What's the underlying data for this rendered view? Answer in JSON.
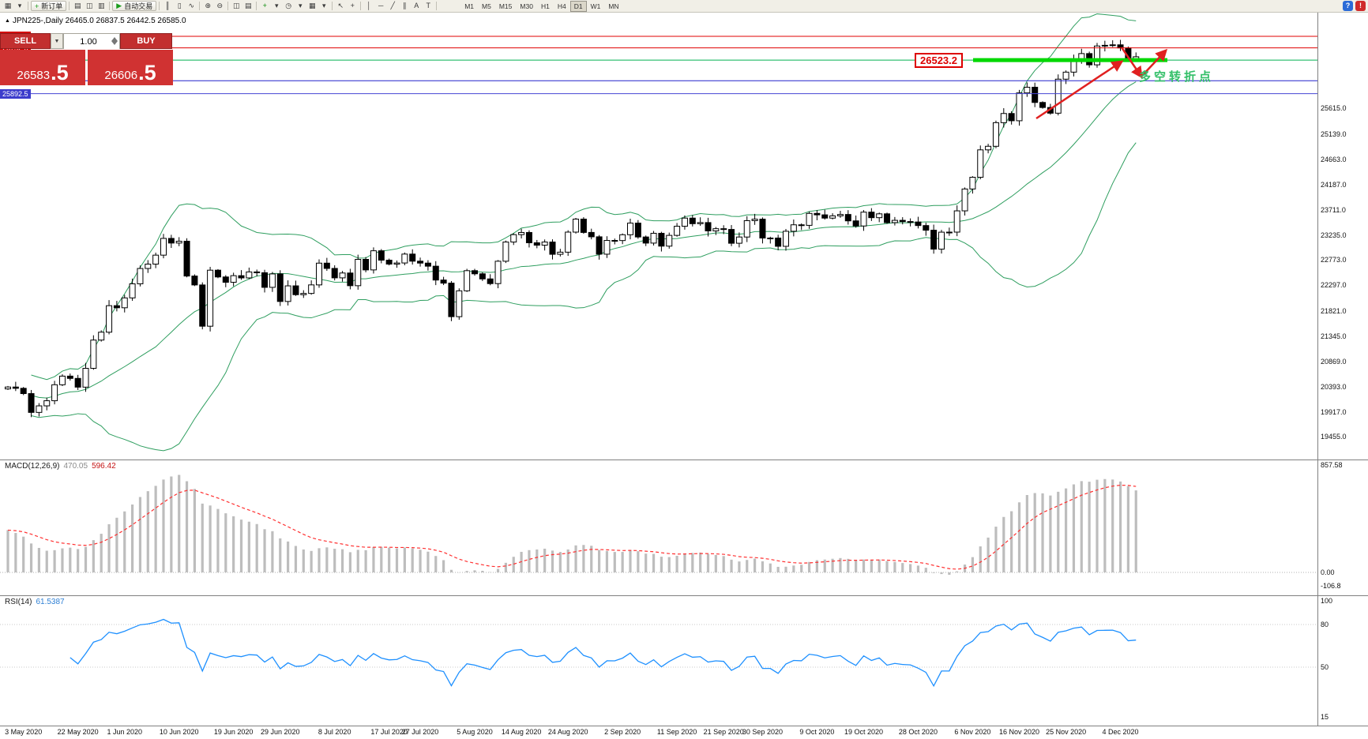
{
  "header": {
    "marker": "▲",
    "symbol_line": "JPN225-,Daily 26465.0 26837.5 26442.5 26585.0"
  },
  "toolbar": {
    "items": [
      {
        "name": "new-chart",
        "glyph": "▦"
      },
      {
        "name": "chart-profiles",
        "glyph": "▾"
      },
      {
        "type": "sep"
      },
      {
        "name": "new-order",
        "type": "button",
        "label": "新订单",
        "glyph": "+",
        "glyph_color": "#1a9c1a"
      },
      {
        "type": "sep"
      },
      {
        "name": "market-watch",
        "glyph": "▤"
      },
      {
        "name": "data-window",
        "glyph": "◫"
      },
      {
        "name": "terminal",
        "glyph": "▥"
      },
      {
        "type": "sep"
      },
      {
        "name": "autotrade",
        "type": "button",
        "label": "自动交易",
        "glyph": "▶",
        "glyph_color": "#1a9c1a"
      },
      {
        "type": "sep"
      },
      {
        "name": "bar-chart",
        "glyph": "║"
      },
      {
        "name": "candlestick-chart",
        "glyph": "▯"
      },
      {
        "name": "line-chart",
        "glyph": "∿"
      },
      {
        "type": "sep"
      },
      {
        "name": "zoom-in",
        "glyph": "⊕"
      },
      {
        "name": "zoom-out",
        "glyph": "⊖"
      },
      {
        "type": "sep"
      },
      {
        "name": "tile-windows",
        "glyph": "◫"
      },
      {
        "name": "cascade-windows",
        "glyph": "▤"
      },
      {
        "type": "sep"
      },
      {
        "name": "indicators",
        "glyph": "+",
        "glyph_color": "#0a8a0a"
      },
      {
        "name": "indicators-list",
        "glyph": "▾"
      },
      {
        "name": "periods",
        "glyph": "◷"
      },
      {
        "name": "periods-list",
        "glyph": "▾"
      },
      {
        "name": "templates",
        "glyph": "▦"
      },
      {
        "name": "templates-list",
        "glyph": "▾"
      },
      {
        "type": "sep"
      },
      {
        "name": "cursor",
        "glyph": "↖"
      },
      {
        "name": "crosshair",
        "glyph": "+"
      },
      {
        "type": "sep"
      },
      {
        "name": "vertical-line",
        "glyph": "│"
      },
      {
        "name": "horizontal-line",
        "glyph": "─"
      },
      {
        "name": "trendline",
        "glyph": "╱"
      },
      {
        "name": "equidistant-channel",
        "glyph": "∥"
      },
      {
        "name": "text-label",
        "glyph": "A"
      },
      {
        "name": "arrows-tool",
        "glyph": "T"
      },
      {
        "type": "sep"
      }
    ],
    "timeframes": [
      "M1",
      "M5",
      "M15",
      "M30",
      "H1",
      "H4",
      "D1",
      "W1",
      "MN"
    ],
    "active_timeframe": "D1",
    "right_icons": [
      {
        "name": "help",
        "glyph": "?",
        "bg": "#2b6bd7"
      },
      {
        "name": "connection-status",
        "glyph": "!",
        "bg": "#d02b2b"
      }
    ]
  },
  "trade_panel": {
    "sell_label": "SELL",
    "buy_label": "BUY",
    "caret_glyph": "▼",
    "volume": "1.00",
    "sell_price": {
      "main": "26583",
      "frac": ".5"
    },
    "buy_price": {
      "main": "26606",
      "frac": ".5"
    }
  },
  "annotations": {
    "price_flag": "26523.2",
    "turn_note": "多空转折点"
  },
  "chart_data": {
    "type": "candlestick",
    "symbol": "JPN225",
    "timeframe": "Daily",
    "title_ohlc": {
      "open": "26465.0",
      "high": "26837.5",
      "low": "26442.5",
      "close": "26585.0"
    },
    "closes": [
      20390,
      20366,
      20267,
      19914,
      20037,
      20133,
      20433,
      20595,
      20552,
      20388,
      20741,
      21271,
      21419,
      21916,
      21877,
      22062,
      22326,
      22614,
      22696,
      22864,
      23178,
      23091,
      23125,
      22472,
      22305,
      21531,
      22582,
      22455,
      22355,
      22479,
      22437,
      22549,
      22534,
      22260,
      22512,
      21995,
      22288,
      22122,
      22146,
      22306,
      22714,
      22615,
      22438,
      22529,
      22291,
      22785,
      22587,
      22946,
      22770,
      22696,
      22717,
      22884,
      22751,
      22715,
      22657,
      22397,
      22339,
      21710,
      22195,
      22573,
      22514,
      22418,
      22330,
      22750,
      23110,
      23249,
      23289,
      23096,
      23051,
      23110,
      22880,
      22920,
      23296,
      23540,
      23290,
      23208,
      22882,
      23140,
      23138,
      23247,
      23465,
      23205,
      23090,
      23274,
      23033,
      23235,
      23406,
      23559,
      23454,
      23475,
      23319,
      23360,
      23346,
      23087,
      23204,
      23511,
      23539,
      23185,
      23185,
      23030,
      23312,
      23433,
      23423,
      23647,
      23620,
      23559,
      23601,
      23627,
      23507,
      23411,
      23671,
      23567,
      23639,
      23474,
      23517,
      23494,
      23486,
      23419,
      23332,
      22977,
      23295,
      23296,
      23695,
      24105,
      24325,
      24839,
      24906,
      25349,
      25521,
      25385,
      25907,
      26014,
      25728,
      25634,
      25527,
      26165,
      26297,
      26537,
      26645,
      26434,
      26787,
      26800,
      26809,
      26751,
      26547,
      26585
    ],
    "overlay": "Bollinger Bands (green)",
    "lines": [
      {
        "value": 26967.9,
        "color": "#e00000",
        "badge_bg": "#d40000"
      },
      {
        "value": 26752.6,
        "color": "#e00000",
        "badge_bg": "#d40000"
      },
      {
        "value": 26523.3,
        "color": "#00b050",
        "badge_bg": "#00a830"
      },
      {
        "value": 26135.4,
        "color": "#2222cc",
        "badge_bg": "#1515c8"
      },
      {
        "value": 25892.5,
        "color": "#4444d4",
        "badge_bg": "#3c3ccc"
      }
    ],
    "price_axis_ticks": [
      25615.0,
      25139.0,
      24663.0,
      24187.0,
      23711.0,
      23235.0,
      22773.0,
      22297.0,
      21821.0,
      21345.0,
      20869.0,
      20393.0,
      19917.0,
      19455.0
    ],
    "macd": {
      "label": "MACD(12,26,9)",
      "value_main": "470.05",
      "value_signal": "596.42",
      "axis": [
        {
          "text": "857.58",
          "value": 857.58
        },
        {
          "text": "0.00",
          "value": 0
        },
        {
          "text": "-106.8",
          "value": -106.8
        }
      ]
    },
    "rsi": {
      "label": "RSI(14)",
      "value": "61.5387",
      "axis": [
        {
          "text": "100",
          "value": 100
        },
        {
          "text": "80",
          "value": 80
        },
        {
          "text": "50",
          "value": 50
        },
        {
          "text": "15",
          "value": 15
        }
      ]
    },
    "dates": [
      {
        "label": "3 May 2020",
        "i": 2
      },
      {
        "label": "22 May 2020",
        "i": 9
      },
      {
        "label": "1 Jun 2020",
        "i": 15
      },
      {
        "label": "10 Jun 2020",
        "i": 22
      },
      {
        "label": "19 Jun 2020",
        "i": 29
      },
      {
        "label": "29 Jun 2020",
        "i": 35
      },
      {
        "label": "8 Jul 2020",
        "i": 42
      },
      {
        "label": "17 Jul 2020",
        "i": 49
      },
      {
        "label": "27 Jul 2020",
        "i": 53
      },
      {
        "label": "5 Aug 2020",
        "i": 60
      },
      {
        "label": "14 Aug 2020",
        "i": 66
      },
      {
        "label": "24 Aug 2020",
        "i": 72
      },
      {
        "label": "2 Sep 2020",
        "i": 79
      },
      {
        "label": "11 Sep 2020",
        "i": 86
      },
      {
        "label": "21 Sep 2020",
        "i": 92
      },
      {
        "label": "30 Sep 2020",
        "i": 97
      },
      {
        "label": "9 Oct 2020",
        "i": 104
      },
      {
        "label": "19 Oct 2020",
        "i": 110
      },
      {
        "label": "28 Oct 2020",
        "i": 117
      },
      {
        "label": "6 Nov 2020",
        "i": 124
      },
      {
        "label": "16 Nov 2020",
        "i": 130
      },
      {
        "label": "25 Nov 2020",
        "i": 136
      },
      {
        "label": "4 Dec 2020",
        "i": 143
      }
    ]
  }
}
